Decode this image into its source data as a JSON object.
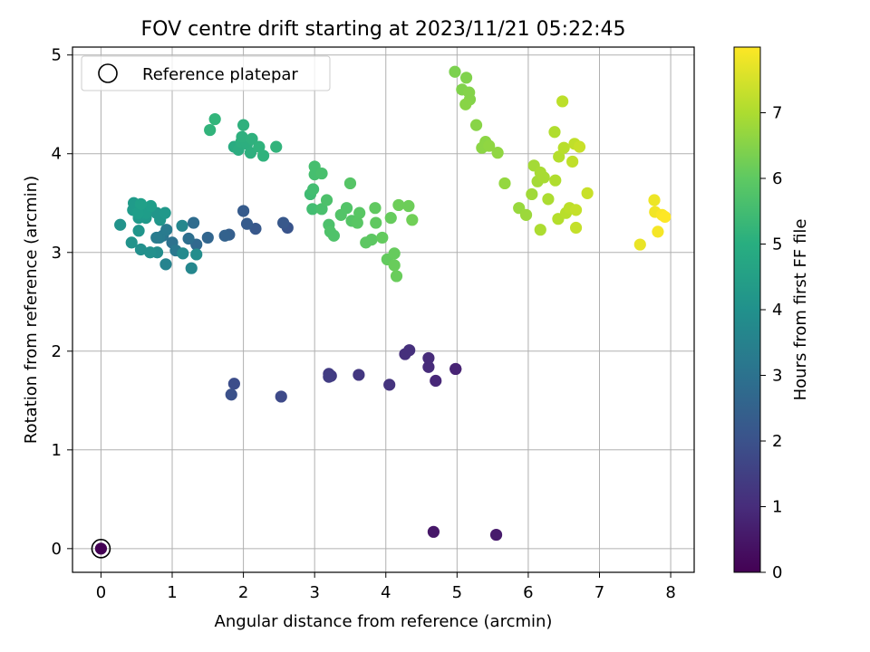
{
  "chart_data": {
    "type": "scatter",
    "title": "FOV centre drift starting at 2023/11/21 05:22:45",
    "xlabel": "Angular distance from reference (arcmin)",
    "ylabel": "Rotation from reference (arcmin)",
    "xlim": [
      -0.4,
      8.33
    ],
    "ylim": [
      -0.24,
      5.08
    ],
    "xticks": [
      0,
      1,
      2,
      3,
      4,
      5,
      6,
      7,
      8
    ],
    "yticks": [
      0,
      1,
      2,
      3,
      4,
      5
    ],
    "grid": true,
    "legend": {
      "label": "Reference platepar",
      "placement": "top-left"
    },
    "reference_point": {
      "x": 0,
      "y": 0
    },
    "colorbar": {
      "label": "Hours from first FF file",
      "colormap": "viridis",
      "range": [
        0,
        8.0
      ],
      "ticks": [
        0,
        1,
        2,
        3,
        4,
        5,
        6,
        7
      ]
    },
    "points": [
      [
        0.0,
        0.0,
        0.0
      ],
      [
        4.67,
        0.17,
        0.5
      ],
      [
        5.55,
        0.14,
        0.6
      ],
      [
        4.98,
        1.82,
        0.7
      ],
      [
        4.98,
        1.82,
        0.8
      ],
      [
        4.7,
        1.7,
        0.9
      ],
      [
        4.6,
        1.84,
        1.0
      ],
      [
        4.6,
        1.93,
        1.0
      ],
      [
        4.33,
        2.01,
        1.1
      ],
      [
        4.27,
        1.97,
        1.1
      ],
      [
        4.05,
        1.66,
        1.2
      ],
      [
        3.62,
        1.76,
        1.3
      ],
      [
        3.23,
        1.75,
        1.4
      ],
      [
        3.2,
        1.77,
        1.4
      ],
      [
        3.2,
        1.74,
        1.45
      ],
      [
        2.53,
        1.54,
        1.8
      ],
      [
        1.87,
        1.67,
        1.9
      ],
      [
        1.83,
        1.56,
        2.0
      ],
      [
        2.62,
        3.25,
        2.1
      ],
      [
        2.56,
        3.3,
        2.2
      ],
      [
        2.17,
        3.24,
        2.2
      ],
      [
        2.05,
        3.29,
        2.3
      ],
      [
        2.0,
        3.42,
        2.3
      ],
      [
        1.8,
        3.18,
        2.4
      ],
      [
        1.74,
        3.17,
        2.5
      ],
      [
        1.5,
        3.15,
        2.6
      ],
      [
        1.34,
        3.08,
        2.7
      ],
      [
        1.3,
        3.3,
        2.8
      ],
      [
        1.23,
        3.14,
        2.9
      ],
      [
        1.0,
        3.1,
        3.0
      ],
      [
        0.87,
        3.17,
        3.1
      ],
      [
        1.05,
        3.02,
        3.2
      ],
      [
        0.82,
        3.15,
        3.3
      ],
      [
        0.92,
        3.23,
        3.3
      ],
      [
        0.78,
        3.15,
        3.35
      ],
      [
        0.91,
        2.88,
        3.6
      ],
      [
        1.27,
        2.84,
        3.7
      ],
      [
        1.14,
        3.27,
        3.7
      ],
      [
        1.15,
        2.99,
        3.8
      ],
      [
        1.34,
        2.98,
        3.9
      ],
      [
        0.79,
        3.0,
        3.9
      ],
      [
        0.69,
        3.0,
        4.0
      ],
      [
        0.56,
        3.03,
        4.0
      ],
      [
        0.43,
        3.1,
        4.1
      ],
      [
        0.27,
        3.28,
        4.1
      ],
      [
        0.53,
        3.22,
        4.15
      ],
      [
        0.83,
        3.33,
        4.2
      ],
      [
        0.78,
        3.4,
        4.2
      ],
      [
        0.9,
        3.4,
        4.25
      ],
      [
        0.63,
        3.35,
        4.3
      ],
      [
        0.53,
        3.35,
        4.3
      ],
      [
        0.45,
        3.43,
        4.35
      ],
      [
        0.46,
        3.5,
        4.35
      ],
      [
        0.58,
        3.46,
        4.4
      ],
      [
        0.63,
        3.4,
        4.4
      ],
      [
        0.7,
        3.47,
        4.45
      ],
      [
        0.52,
        3.4,
        4.45
      ],
      [
        0.56,
        3.49,
        4.5
      ],
      [
        1.87,
        4.07,
        4.9
      ],
      [
        1.93,
        4.04,
        4.95
      ],
      [
        1.97,
        4.12,
        5.0
      ],
      [
        2.05,
        4.1,
        5.0
      ],
      [
        2.1,
        4.01,
        5.05
      ],
      [
        1.98,
        4.17,
        5.05
      ],
      [
        2.0,
        4.29,
        5.1
      ],
      [
        2.12,
        4.15,
        5.1
      ],
      [
        2.22,
        4.07,
        5.15
      ],
      [
        2.28,
        3.98,
        5.15
      ],
      [
        2.46,
        4.07,
        5.2
      ],
      [
        1.53,
        4.24,
        5.2
      ],
      [
        1.6,
        4.35,
        5.25
      ],
      [
        2.94,
        3.59,
        5.5
      ],
      [
        2.97,
        3.44,
        5.55
      ],
      [
        2.98,
        3.64,
        5.55
      ],
      [
        3.0,
        3.87,
        5.6
      ],
      [
        3.0,
        3.79,
        5.6
      ],
      [
        3.1,
        3.44,
        5.65
      ],
      [
        3.1,
        3.8,
        5.65
      ],
      [
        3.17,
        3.53,
        5.7
      ],
      [
        3.2,
        3.28,
        5.7
      ],
      [
        3.22,
        3.21,
        5.75
      ],
      [
        3.27,
        3.17,
        5.75
      ],
      [
        3.37,
        3.38,
        5.8
      ],
      [
        3.45,
        3.45,
        5.8
      ],
      [
        3.5,
        3.7,
        5.85
      ],
      [
        3.52,
        3.32,
        5.85
      ],
      [
        3.6,
        3.3,
        5.9
      ],
      [
        3.63,
        3.4,
        5.9
      ],
      [
        3.72,
        3.1,
        5.95
      ],
      [
        3.8,
        3.13,
        5.95
      ],
      [
        3.85,
        3.45,
        6.0
      ],
      [
        3.86,
        3.3,
        6.0
      ],
      [
        3.95,
        3.15,
        6.05
      ],
      [
        4.02,
        2.93,
        6.05
      ],
      [
        4.07,
        3.35,
        6.1
      ],
      [
        4.12,
        2.99,
        6.1
      ],
      [
        4.12,
        2.87,
        6.15
      ],
      [
        4.15,
        2.76,
        6.15
      ],
      [
        4.18,
        3.48,
        6.2
      ],
      [
        4.32,
        3.47,
        6.2
      ],
      [
        4.37,
        3.33,
        6.25
      ],
      [
        4.97,
        4.83,
        6.4
      ],
      [
        5.07,
        4.65,
        6.45
      ],
      [
        5.13,
        4.77,
        6.45
      ],
      [
        5.17,
        4.62,
        6.5
      ],
      [
        5.18,
        4.55,
        6.5
      ],
      [
        5.12,
        4.5,
        6.55
      ],
      [
        5.27,
        4.29,
        6.55
      ],
      [
        5.35,
        4.06,
        6.6
      ],
      [
        5.4,
        4.12,
        6.6
      ],
      [
        5.45,
        4.08,
        6.65
      ],
      [
        5.57,
        4.01,
        6.65
      ],
      [
        5.67,
        3.7,
        6.7
      ],
      [
        5.87,
        3.45,
        6.75
      ],
      [
        5.97,
        3.38,
        6.8
      ],
      [
        6.05,
        3.59,
        6.85
      ],
      [
        6.08,
        3.88,
        6.9
      ],
      [
        6.13,
        3.72,
        6.9
      ],
      [
        6.17,
        3.81,
        6.95
      ],
      [
        6.22,
        3.76,
        6.95
      ],
      [
        6.17,
        3.23,
        7.0
      ],
      [
        6.28,
        3.54,
        7.0
      ],
      [
        6.37,
        4.22,
        7.05
      ],
      [
        6.38,
        3.73,
        7.05
      ],
      [
        6.42,
        3.34,
        7.1
      ],
      [
        6.43,
        3.97,
        7.1
      ],
      [
        6.5,
        4.06,
        7.15
      ],
      [
        6.53,
        3.4,
        7.15
      ],
      [
        6.58,
        3.45,
        7.2
      ],
      [
        6.48,
        4.53,
        7.2
      ],
      [
        6.62,
        3.92,
        7.25
      ],
      [
        6.65,
        4.1,
        7.25
      ],
      [
        6.67,
        3.25,
        7.3
      ],
      [
        6.67,
        3.43,
        7.3
      ],
      [
        6.72,
        4.07,
        7.35
      ],
      [
        6.83,
        3.6,
        7.35
      ],
      [
        7.57,
        3.08,
        7.75
      ],
      [
        7.77,
        3.53,
        7.8
      ],
      [
        7.78,
        3.41,
        7.85
      ],
      [
        7.82,
        3.21,
        7.9
      ],
      [
        7.88,
        3.38,
        7.95
      ],
      [
        7.92,
        3.36,
        8.0
      ]
    ]
  }
}
